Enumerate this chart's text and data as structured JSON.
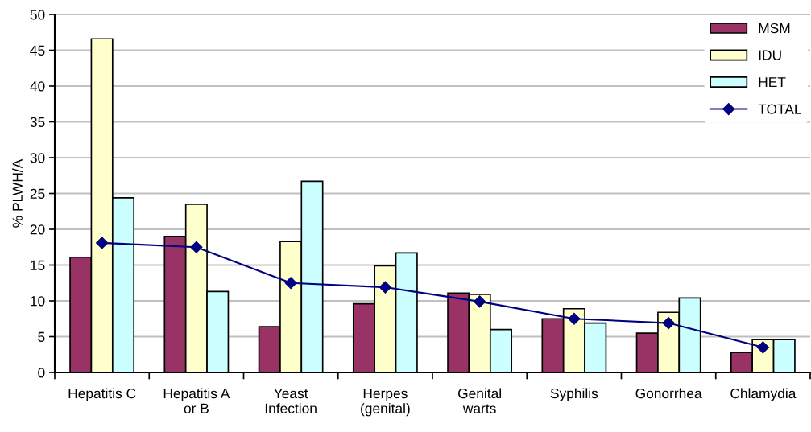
{
  "chart_data": {
    "type": "bar",
    "ylabel": "% PLWH/A",
    "categories": [
      "Hepatitis C",
      "Hepatitis A\nor B",
      "Yeast\nInfection",
      "Herpes\n(genital)",
      "Genital\nwarts",
      "Syphilis",
      "Gonorrhea",
      "Chlamydia"
    ],
    "series": [
      {
        "name": "MSM",
        "color": "#993366",
        "values": [
          16.1,
          19.0,
          6.4,
          9.6,
          11.1,
          7.5,
          5.5,
          2.8
        ]
      },
      {
        "name": "IDU",
        "color": "#ffffcc",
        "values": [
          46.6,
          23.5,
          18.3,
          14.9,
          10.9,
          8.9,
          8.4,
          4.6
        ]
      },
      {
        "name": "HET",
        "color": "#ccffff",
        "values": [
          24.4,
          11.3,
          26.7,
          16.7,
          6.0,
          6.9,
          10.4,
          4.6
        ]
      },
      {
        "name": "TOTAL",
        "type": "line",
        "color": "#000080",
        "values": [
          18.1,
          17.5,
          12.5,
          11.9,
          9.9,
          7.5,
          6.9,
          3.5
        ]
      }
    ],
    "ylim": [
      0,
      50
    ],
    "yticks": [
      0,
      5,
      10,
      15,
      20,
      25,
      30,
      35,
      40,
      45,
      50
    ],
    "grid": "y",
    "legend": "top right",
    "marker": "diamond",
    "line_style": "solid"
  }
}
